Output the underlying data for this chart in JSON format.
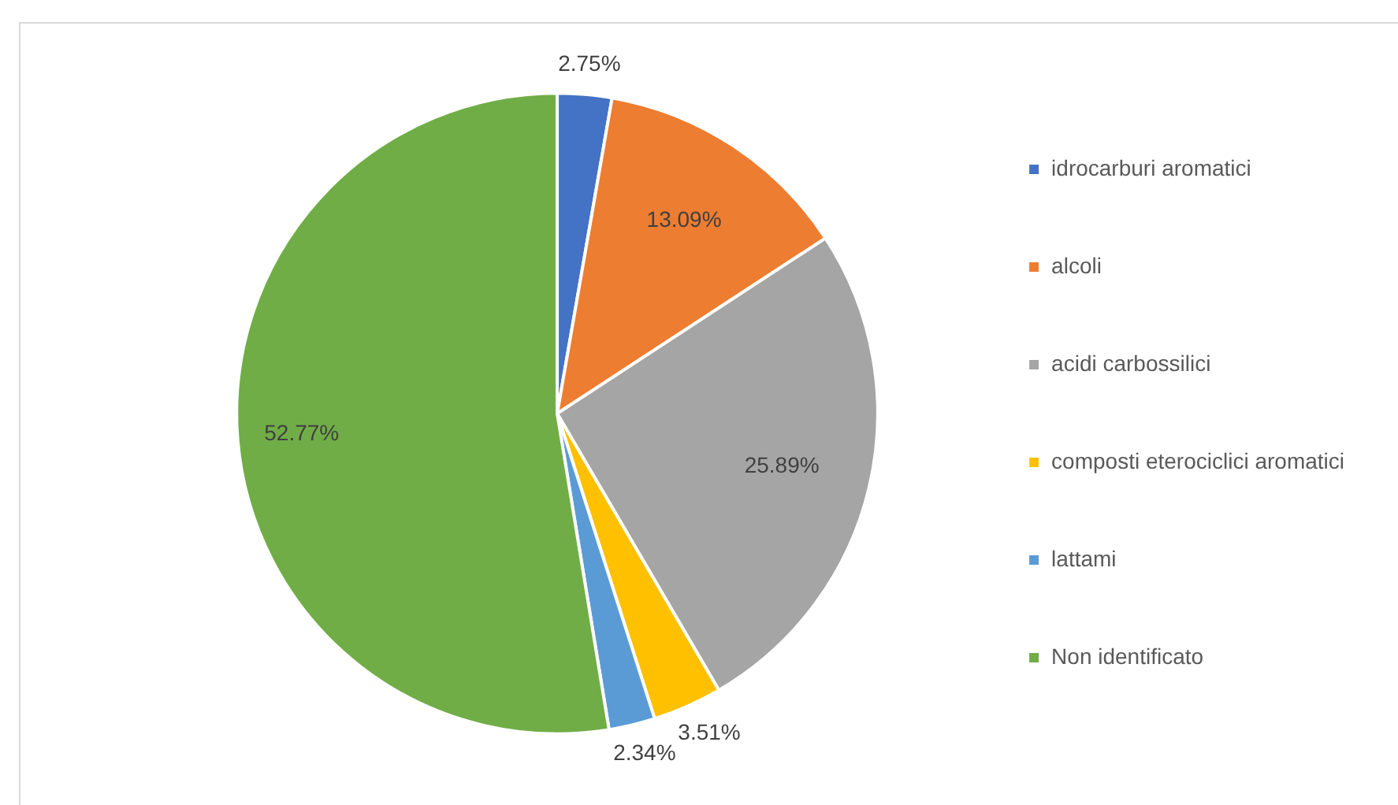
{
  "chart_data": {
    "type": "pie",
    "categories": [
      "idrocarburi aromatici",
      "alcoli",
      "acidi carbossilici",
      "composti eterociclici aromatici",
      "lattami",
      "Non identificato"
    ],
    "values": [
      2.75,
      13.09,
      25.89,
      3.51,
      2.34,
      52.77
    ],
    "colors": [
      "#4472c4",
      "#ed7d31",
      "#a5a5a5",
      "#ffc000",
      "#5b9bd5",
      "#70ad47"
    ],
    "value_labels": [
      "2.75%",
      "13.09%",
      "25.89%",
      "3.51%",
      "2.34%",
      "52.77%"
    ],
    "legend": "right"
  }
}
